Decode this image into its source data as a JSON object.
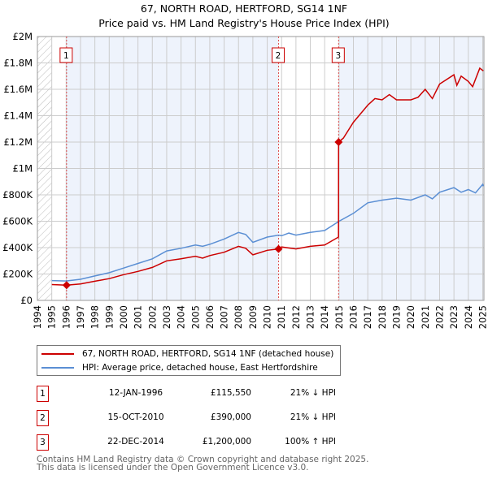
{
  "chart_data": {
    "type": "line",
    "title": "67, NORTH ROAD, HERTFORD, SG14 1NF",
    "subtitle": "Price paid vs. HM Land Registry's House Price Index (HPI)",
    "xlim": [
      1994,
      2025.1
    ],
    "ylim": [
      0,
      2000000
    ],
    "x_ticks": [
      "1994",
      "1995",
      "1996",
      "1997",
      "1998",
      "1999",
      "2000",
      "2001",
      "2002",
      "2003",
      "2004",
      "2005",
      "2006",
      "2007",
      "2008",
      "2009",
      "2010",
      "2011",
      "2012",
      "2013",
      "2014",
      "2015",
      "2016",
      "2017",
      "2018",
      "2019",
      "2020",
      "2021",
      "2022",
      "2023",
      "2024",
      "2025"
    ],
    "y_ticks": [
      {
        "v": 0,
        "label": "£0"
      },
      {
        "v": 200000,
        "label": "£200K"
      },
      {
        "v": 400000,
        "label": "£400K"
      },
      {
        "v": 600000,
        "label": "£600K"
      },
      {
        "v": 800000,
        "label": "£800K"
      },
      {
        "v": 1000000,
        "label": "£1M"
      },
      {
        "v": 1200000,
        "label": "£1.2M"
      },
      {
        "v": 1400000,
        "label": "£1.4M"
      },
      {
        "v": 1600000,
        "label": "£1.6M"
      },
      {
        "v": 1800000,
        "label": "£1.8M"
      },
      {
        "v": 2000000,
        "label": "£2M"
      }
    ],
    "grid": true,
    "series": [
      {
        "name": "67, NORTH ROAD, HERTFORD, SG14 1NF (detached house)",
        "color": "#cc0000",
        "x": [
          1995,
          1996.03,
          1997,
          1998,
          1999,
          2000,
          2001,
          2002,
          2003,
          2004,
          2005,
          2005.5,
          2006,
          2007,
          2008,
          2008.5,
          2009,
          2010,
          2010.79,
          2011,
          2012,
          2013,
          2014,
          2014.96,
          2014.97,
          2015.3,
          2016,
          2017,
          2017.5,
          2018,
          2018.5,
          2019,
          2020,
          2020.5,
          2021,
          2021.5,
          2022,
          2023,
          2023.2,
          2023.5,
          2024,
          2024.3,
          2024.8,
          2025.05
        ],
        "y": [
          120000,
          115550,
          125000,
          145000,
          165000,
          195000,
          220000,
          250000,
          300000,
          315000,
          335000,
          320000,
          340000,
          365000,
          410000,
          395000,
          345000,
          380000,
          390000,
          405000,
          390000,
          410000,
          420000,
          480000,
          1200000,
          1230000,
          1350000,
          1480000,
          1530000,
          1520000,
          1560000,
          1520000,
          1520000,
          1540000,
          1600000,
          1530000,
          1640000,
          1710000,
          1630000,
          1700000,
          1660000,
          1620000,
          1760000,
          1740000
        ]
      },
      {
        "name": "HPI: Average price, detached house, East Hertfordshire",
        "color": "#5b8fd4",
        "x": [
          1995,
          1996,
          1997,
          1998,
          1999,
          2000,
          2001,
          2002,
          2003,
          2004,
          2005,
          2005.5,
          2006,
          2007,
          2008,
          2008.5,
          2009,
          2010,
          2010.8,
          2011,
          2011.5,
          2012,
          2013,
          2014,
          2015,
          2016,
          2017,
          2018,
          2019,
          2020,
          2021,
          2021.5,
          2022,
          2023,
          2023.5,
          2024,
          2024.5,
          2025,
          2025.05
        ],
        "y": [
          150000,
          147000,
          160000,
          185000,
          210000,
          245000,
          280000,
          315000,
          375000,
          395000,
          420000,
          410000,
          425000,
          465000,
          515000,
          500000,
          440000,
          480000,
          495000,
          490000,
          510000,
          495000,
          515000,
          530000,
          600000,
          660000,
          740000,
          760000,
          775000,
          760000,
          800000,
          770000,
          820000,
          855000,
          820000,
          840000,
          815000,
          880000,
          865000
        ]
      }
    ],
    "sales": [
      {
        "id": "1",
        "x": 1996.03,
        "y": 115550
      },
      {
        "id": "2",
        "x": 2010.79,
        "y": 390000
      },
      {
        "id": "3",
        "x": 2014.97,
        "y": 1200000
      }
    ],
    "legend_placement": "below"
  },
  "table": [
    {
      "id": "1",
      "date": "12-JAN-1996",
      "price": "£115,550",
      "hpi": "21% ↓ HPI"
    },
    {
      "id": "2",
      "date": "15-OCT-2010",
      "price": "£390,000",
      "hpi": "21% ↓ HPI"
    },
    {
      "id": "3",
      "date": "22-DEC-2014",
      "price": "£1,200,000",
      "hpi": "100% ↑ HPI"
    }
  ],
  "footer": [
    "Contains HM Land Registry data © Crown copyright and database right 2025.",
    "This data is licensed under the Open Government Licence v3.0."
  ]
}
